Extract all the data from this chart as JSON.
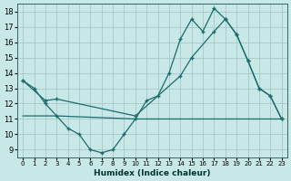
{
  "xlabel": "Humidex (Indice chaleur)",
  "background_color": "#c8e8e8",
  "grid_color": "#a8c8c8",
  "line_color": "#1a6b6b",
  "xlim": [
    -0.5,
    23.5
  ],
  "ylim": [
    8.5,
    18.5
  ],
  "xticks": [
    0,
    1,
    2,
    3,
    4,
    5,
    6,
    7,
    8,
    9,
    10,
    11,
    12,
    13,
    14,
    15,
    16,
    17,
    18,
    19,
    20,
    21,
    22,
    23
  ],
  "yticks": [
    9,
    10,
    11,
    12,
    13,
    14,
    15,
    16,
    17,
    18
  ],
  "line1_x": [
    0,
    1,
    2,
    3,
    4,
    5,
    6,
    7,
    8,
    9,
    10,
    11,
    12,
    13,
    14,
    15,
    16,
    17,
    18,
    19,
    20,
    21,
    22,
    23
  ],
  "line1_y": [
    13.5,
    13.0,
    12.0,
    11.2,
    10.4,
    10.0,
    9.0,
    8.8,
    9.0,
    10.0,
    11.0,
    12.2,
    12.5,
    14.0,
    16.2,
    17.5,
    16.7,
    18.2,
    17.5,
    16.5,
    14.8,
    13.0,
    12.5,
    11.0
  ],
  "line2_x": [
    0,
    2,
    3,
    10,
    14,
    15,
    17,
    18,
    19,
    20,
    21,
    22,
    23
  ],
  "line2_y": [
    13.5,
    12.2,
    12.3,
    11.2,
    13.8,
    15.0,
    16.7,
    17.5,
    16.5,
    14.8,
    13.0,
    12.5,
    11.0
  ],
  "line3_x": [
    0,
    3,
    10,
    23
  ],
  "line3_y": [
    11.2,
    11.2,
    11.0,
    11.0
  ]
}
